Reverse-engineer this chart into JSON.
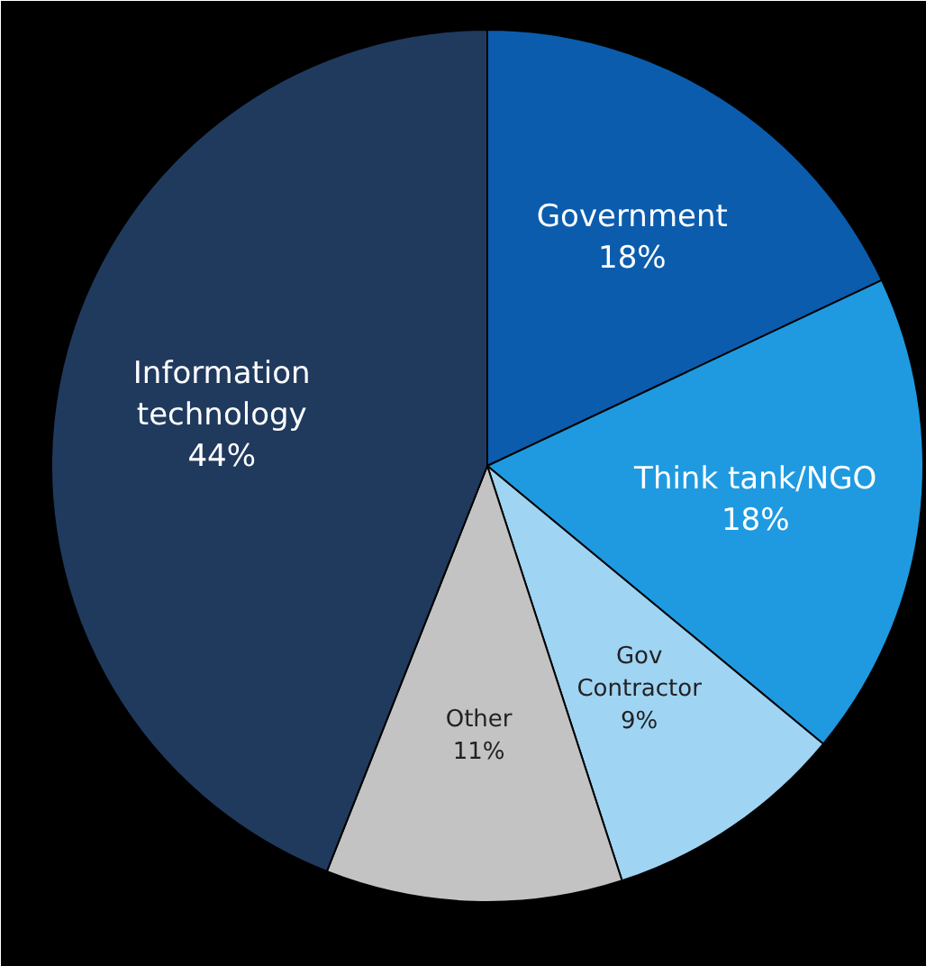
{
  "chart_data": {
    "type": "pie",
    "categories": [
      "Government",
      "Think tank/NGO",
      "Gov Contractor",
      "Other",
      "Information technology"
    ],
    "values": [
      18,
      18,
      9,
      11,
      44
    ],
    "value_labels": [
      "18%",
      "18%",
      "9%",
      "11%",
      "44%"
    ],
    "colors": [
      "#0b5cad",
      "#1f9ae0",
      "#9fd4f3",
      "#c3c3c3",
      "#203a5e"
    ]
  }
}
